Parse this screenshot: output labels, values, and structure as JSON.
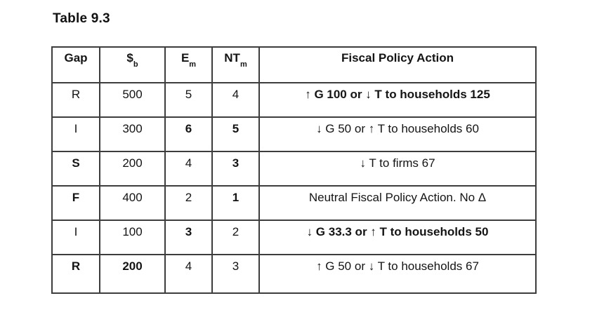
{
  "page": {
    "title": "Table 9.3"
  },
  "colors": {
    "accent_red": "#dd1d25",
    "text_black": "#141414",
    "border": "#3d3d3d",
    "background": "#ffffff"
  },
  "table": {
    "columns": [
      {
        "key": "gap",
        "label": "Gap",
        "sub": ""
      },
      {
        "key": "dollar-b",
        "label": "$",
        "sub": "b"
      },
      {
        "key": "e-m",
        "label": "E",
        "sub": "m"
      },
      {
        "key": "nt-m",
        "label": "NT",
        "sub": "m"
      },
      {
        "key": "action",
        "label": "Fiscal Policy Action",
        "sub": ""
      }
    ],
    "rows": [
      {
        "cells": [
          {
            "text": "R",
            "red": false
          },
          {
            "text": "500",
            "red": false
          },
          {
            "text": "5",
            "red": false
          },
          {
            "text": "4",
            "red": false
          },
          {
            "text": "↑ G 100 or ↓ T to households 125",
            "red": true
          }
        ]
      },
      {
        "cells": [
          {
            "text": "I",
            "red": false
          },
          {
            "text": "300",
            "red": false
          },
          {
            "text": "6",
            "red": true
          },
          {
            "text": "5",
            "red": true
          },
          {
            "text": "↓ G 50 or ↑ T to households 60",
            "red": false
          }
        ]
      },
      {
        "cells": [
          {
            "text": "S",
            "red": true
          },
          {
            "text": "200",
            "red": false
          },
          {
            "text": "4",
            "red": false
          },
          {
            "text": "3",
            "red": true
          },
          {
            "text": "↓ T to firms 67",
            "red": false
          }
        ]
      },
      {
        "cells": [
          {
            "text": "F",
            "red": true
          },
          {
            "text": "400",
            "red": false
          },
          {
            "text": "2",
            "red": false
          },
          {
            "text": "1",
            "red": true
          },
          {
            "text": "Neutral Fiscal Policy Action. No Δ",
            "red": false
          }
        ]
      },
      {
        "cells": [
          {
            "text": "I",
            "red": false
          },
          {
            "text": "100",
            "red": false
          },
          {
            "text": "3",
            "red": true
          },
          {
            "text": "2",
            "red": false
          },
          {
            "text": "↓ G 33.3 or ↑ T to households 50",
            "red": true
          }
        ]
      },
      {
        "cells": [
          {
            "text": "R",
            "red": true
          },
          {
            "text": "200",
            "red": true
          },
          {
            "text": "4",
            "red": false
          },
          {
            "text": "3",
            "red": false
          },
          {
            "text": "↑ G 50 or ↓ T to households 67",
            "red": false
          }
        ]
      }
    ]
  }
}
